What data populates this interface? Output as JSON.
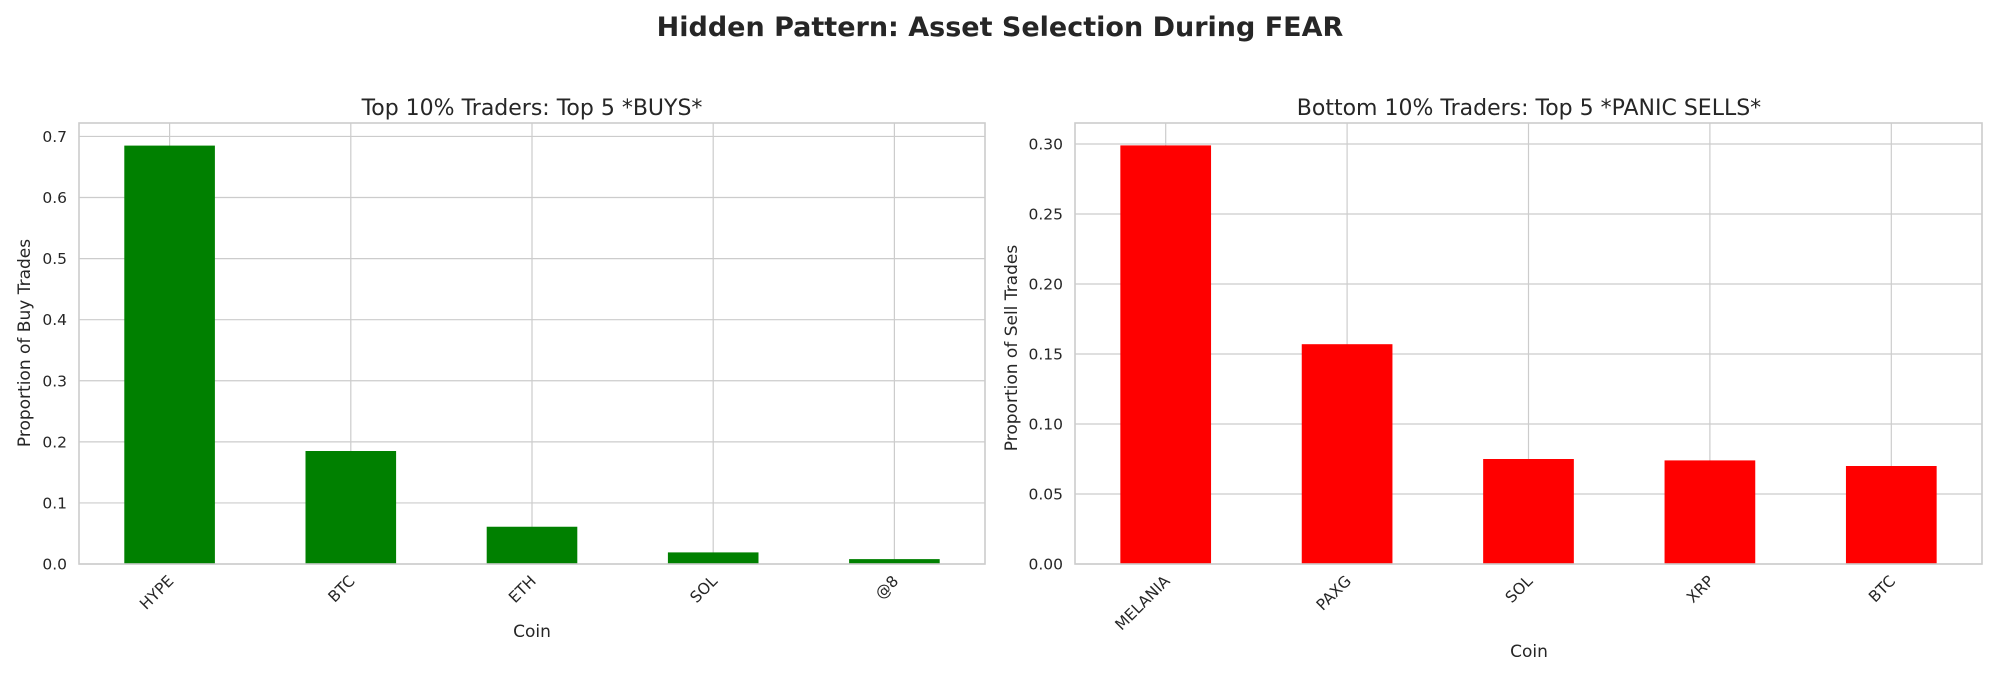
{
  "figure": {
    "title": "Hidden Pattern: Asset Selection During FEAR"
  },
  "chart_data": [
    {
      "type": "bar",
      "title": "Top 10% Traders: Top 5 *BUYS*",
      "xlabel": "Coin",
      "ylabel": "Proportion of Buy Trades",
      "categories": [
        "HYPE",
        "BTC",
        "ETH",
        "SOL",
        "@8"
      ],
      "values": [
        0.685,
        0.185,
        0.061,
        0.019,
        0.008
      ],
      "ylim": [
        0,
        0.722
      ],
      "yticks": [
        0.0,
        0.1,
        0.2,
        0.3,
        0.4,
        0.5,
        0.6,
        0.7
      ],
      "ytick_labels": [
        "0.0",
        "0.1",
        "0.2",
        "0.3",
        "0.4",
        "0.5",
        "0.6",
        "0.7"
      ],
      "color": "#008000",
      "grid": true,
      "xtick_rotation": -45
    },
    {
      "type": "bar",
      "title": "Bottom 10% Traders: Top 5 *PANIC SELLS*",
      "xlabel": "Coin",
      "ylabel": "Proportion of Sell Trades",
      "categories": [
        "MELANIA",
        "PAXG",
        "SOL",
        "XRP",
        "BTC"
      ],
      "values": [
        0.299,
        0.157,
        0.075,
        0.074,
        0.07
      ],
      "ylim": [
        0,
        0.315
      ],
      "yticks": [
        0.0,
        0.05,
        0.1,
        0.15,
        0.2,
        0.25,
        0.3
      ],
      "ytick_labels": [
        "0.00",
        "0.05",
        "0.10",
        "0.15",
        "0.20",
        "0.25",
        "0.30"
      ],
      "color": "#ff0000",
      "grid": true,
      "xtick_rotation": -45
    }
  ]
}
